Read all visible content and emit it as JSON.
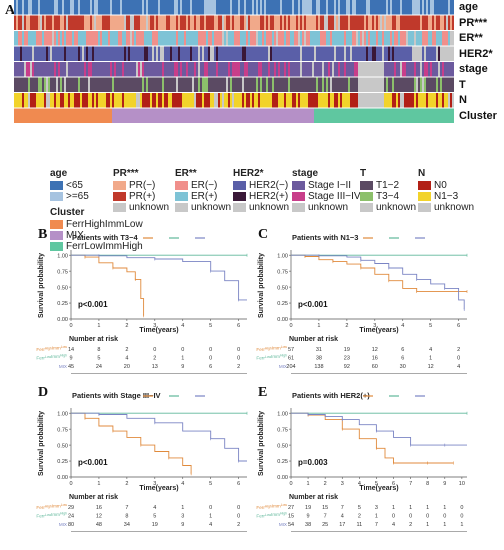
{
  "panel_a": {
    "letter": "A",
    "tracks": [
      {
        "key": "age",
        "label": "age"
      },
      {
        "key": "pr",
        "label": "PR***"
      },
      {
        "key": "er",
        "label": "ER**"
      },
      {
        "key": "her2",
        "label": "HER2*"
      },
      {
        "key": "stage",
        "label": "stage"
      },
      {
        "key": "t",
        "label": "T"
      },
      {
        "key": "n",
        "label": "N"
      },
      {
        "key": "cluster",
        "label": "Cluster"
      }
    ],
    "colors": {
      "age_lt65": "#3d72b4",
      "age_ge65": "#a6c3e0",
      "pr_neg": "#f1a98a",
      "pr_pos": "#c0392b",
      "er_neg": "#f08f8b",
      "er_pos": "#7ec3d6",
      "her2_neg": "#5a5fa8",
      "her2_pos": "#3a1838",
      "stage_1": "#6c5a9e",
      "stage_3": "#c83e8a",
      "t_1": "#5b4a63",
      "t_3": "#8cc06b",
      "n_0": "#b22016",
      "n_1": "#f2d32a",
      "unknown": "#c8c8c8",
      "cl_ferr_high": "#f08a50",
      "cl_mix": "#b590c7",
      "cl_ferr_low": "#5fc7a0"
    },
    "legends": [
      {
        "title": "age",
        "items": [
          {
            "c": "age_lt65",
            "t": "<65"
          },
          {
            "c": "age_ge65",
            "t": ">=65"
          }
        ]
      },
      {
        "title": "PR***",
        "items": [
          {
            "c": "pr_neg",
            "t": "PR(−)"
          },
          {
            "c": "pr_pos",
            "t": "PR(+)"
          },
          {
            "c": "unknown",
            "t": "unknown"
          }
        ]
      },
      {
        "title": "ER**",
        "items": [
          {
            "c": "er_neg",
            "t": "ER(−)"
          },
          {
            "c": "er_pos",
            "t": "ER(+)"
          },
          {
            "c": "unknown",
            "t": "unknown"
          }
        ]
      },
      {
        "title": "HER2*",
        "items": [
          {
            "c": "her2_neg",
            "t": "HER2(−)"
          },
          {
            "c": "her2_pos",
            "t": "HER2(+)"
          },
          {
            "c": "unknown",
            "t": "unknown"
          }
        ]
      },
      {
        "title": "stage",
        "items": [
          {
            "c": "stage_1",
            "t": "Stage I−II"
          },
          {
            "c": "stage_3",
            "t": "Stage III−IV"
          },
          {
            "c": "unknown",
            "t": "unknown"
          }
        ]
      },
      {
        "title": "T",
        "items": [
          {
            "c": "t_1",
            "t": "T1−2"
          },
          {
            "c": "t_3",
            "t": "T3−4"
          },
          {
            "c": "unknown",
            "t": "unknown"
          }
        ]
      },
      {
        "title": "N",
        "items": [
          {
            "c": "n_0",
            "t": "N0"
          },
          {
            "c": "n_1",
            "t": "N1−3"
          },
          {
            "c": "unknown",
            "t": "unknown"
          }
        ]
      }
    ],
    "cluster_legend": {
      "title": "Cluster",
      "items": [
        {
          "c": "cl_ferr_high",
          "t": "Ferr^High Imm^Low"
        },
        {
          "c": "cl_mix",
          "t": "MIX"
        },
        {
          "c": "cl_ferr_low",
          "t": "Ferr^Low Imm^High"
        }
      ]
    }
  },
  "chart_data": [
    {
      "letter": "B",
      "type": "line",
      "title": "Patients with T3−4",
      "xlabel": "Time(years)",
      "ylabel": "Survival probability",
      "xlim": [
        0,
        6.3
      ],
      "ylim": [
        0,
        1.05
      ],
      "xticks": [
        0,
        1,
        2,
        3,
        4,
        5,
        6
      ],
      "yticks": [
        0,
        0.25,
        0.5,
        0.75,
        1.0
      ],
      "ytick_labels": [
        "0.00",
        "0.25",
        "0.50",
        "0.75",
        "1.00"
      ],
      "pvalue": "p<0.001",
      "series": [
        {
          "key": "ferr_high",
          "color": "#e08a3c",
          "points": [
            [
              0,
              1
            ],
            [
              0.5,
              0.97
            ],
            [
              1,
              0.88
            ],
            [
              1.5,
              0.8
            ],
            [
              2,
              0.74
            ],
            [
              2.3,
              0.62
            ],
            [
              2.5,
              0.32
            ],
            [
              2.6,
              0.05
            ]
          ]
        },
        {
          "key": "ferr_low",
          "color": "#5fb79a",
          "points": [
            [
              0,
              1
            ],
            [
              6.3,
              1
            ]
          ]
        },
        {
          "key": "mix",
          "color": "#7a84c4",
          "points": [
            [
              0,
              1
            ],
            [
              1,
              0.99
            ],
            [
              2,
              0.96
            ],
            [
              3,
              0.94
            ],
            [
              4,
              0.9
            ],
            [
              5,
              0.75
            ],
            [
              5.5,
              0.6
            ],
            [
              6,
              0.3
            ],
            [
              6.3,
              0.3
            ]
          ]
        }
      ],
      "risk_title": "Number at risk",
      "risk_rows": [
        {
          "key": "ferr_high",
          "label": "Ferr^High Imm^Low",
          "color": "#e08a3c",
          "values": [
            14,
            8,
            2,
            0,
            0,
            0,
            0
          ]
        },
        {
          "key": "ferr_low",
          "label": "Ferr^Low Imm^High",
          "color": "#5fb79a",
          "values": [
            9,
            5,
            4,
            2,
            1,
            0,
            0
          ]
        },
        {
          "key": "mix",
          "label": "MIX",
          "color": "#7a84c4",
          "values": [
            45,
            24,
            20,
            13,
            9,
            6,
            2
          ]
        }
      ]
    },
    {
      "letter": "C",
      "type": "line",
      "title": "Patients with N1−3",
      "xlabel": "Time(years)",
      "ylabel": "Survival probability",
      "xlim": [
        0,
        6.3
      ],
      "ylim": [
        0,
        1.05
      ],
      "xticks": [
        0,
        1,
        2,
        3,
        4,
        5,
        6
      ],
      "yticks": [
        0,
        0.25,
        0.5,
        0.75,
        1.0
      ],
      "ytick_labels": [
        "0.00",
        "0.25",
        "0.50",
        "0.75",
        "1.00"
      ],
      "pvalue": "p<0.001",
      "series": [
        {
          "key": "ferr_high",
          "color": "#e08a3c",
          "points": [
            [
              0,
              1
            ],
            [
              0.5,
              0.98
            ],
            [
              1,
              0.93
            ],
            [
              1.5,
              0.9
            ],
            [
              2,
              0.86
            ],
            [
              2.5,
              0.8
            ],
            [
              3,
              0.7
            ],
            [
              3.5,
              0.6
            ],
            [
              4,
              0.48
            ],
            [
              4.5,
              0.43
            ],
            [
              5,
              0.43
            ],
            [
              6.3,
              0.43
            ]
          ]
        },
        {
          "key": "ferr_low",
          "color": "#5fb79a",
          "points": [
            [
              0,
              1
            ],
            [
              6.3,
              1
            ]
          ]
        },
        {
          "key": "mix",
          "color": "#7a84c4",
          "points": [
            [
              0,
              1
            ],
            [
              1,
              0.99
            ],
            [
              2,
              0.97
            ],
            [
              2.5,
              0.92
            ],
            [
              3,
              0.87
            ],
            [
              3.5,
              0.8
            ],
            [
              4,
              0.7
            ],
            [
              4.5,
              0.62
            ],
            [
              5,
              0.55
            ],
            [
              5.5,
              0.48
            ],
            [
              6,
              0.3
            ],
            [
              6.2,
              0.15
            ]
          ]
        }
      ],
      "risk_title": "Number at risk",
      "risk_rows": [
        {
          "key": "ferr_high",
          "label": "Ferr^High Imm^Low",
          "color": "#e08a3c",
          "values": [
            57,
            31,
            19,
            12,
            6,
            4,
            2
          ]
        },
        {
          "key": "ferr_low",
          "label": "Ferr^Low Imm^High",
          "color": "#5fb79a",
          "values": [
            61,
            38,
            23,
            16,
            6,
            1,
            0
          ]
        },
        {
          "key": "mix",
          "label": "MIX",
          "color": "#7a84c4",
          "values": [
            204,
            138,
            92,
            60,
            30,
            12,
            4
          ]
        }
      ]
    },
    {
      "letter": "D",
      "type": "line",
      "title": "Patients with Stage III−IV",
      "xlabel": "Time(years)",
      "ylabel": "Survival probability",
      "xlim": [
        0,
        6.3
      ],
      "ylim": [
        0,
        1.05
      ],
      "xticks": [
        0,
        1,
        2,
        3,
        4,
        5,
        6
      ],
      "yticks": [
        0,
        0.25,
        0.5,
        0.75,
        1.0
      ],
      "ytick_labels": [
        "0.00",
        "0.25",
        "0.50",
        "0.75",
        "1.00"
      ],
      "pvalue": "p<0.001",
      "series": [
        {
          "key": "ferr_high",
          "color": "#e08a3c",
          "points": [
            [
              0,
              1
            ],
            [
              0.5,
              0.92
            ],
            [
              1,
              0.8
            ],
            [
              1.5,
              0.72
            ],
            [
              2,
              0.62
            ],
            [
              2.5,
              0.5
            ],
            [
              3,
              0.4
            ],
            [
              3.5,
              0.3
            ],
            [
              4,
              0.18
            ],
            [
              4.3,
              0.05
            ]
          ]
        },
        {
          "key": "ferr_low",
          "color": "#5fb79a",
          "points": [
            [
              0,
              1
            ],
            [
              6.3,
              1
            ]
          ]
        },
        {
          "key": "mix",
          "color": "#7a84c4",
          "points": [
            [
              0,
              1
            ],
            [
              1,
              0.98
            ],
            [
              2,
              0.92
            ],
            [
              3,
              0.85
            ],
            [
              4,
              0.72
            ],
            [
              5,
              0.6
            ],
            [
              5.5,
              0.45
            ],
            [
              6,
              0.25
            ],
            [
              6.3,
              0.25
            ]
          ]
        }
      ],
      "risk_title": "Number at risk",
      "risk_rows": [
        {
          "key": "ferr_high",
          "label": "Ferr^High Imm^Low",
          "color": "#e08a3c",
          "values": [
            29,
            16,
            7,
            4,
            1,
            0,
            0
          ]
        },
        {
          "key": "ferr_low",
          "label": "Ferr^Low Imm^High",
          "color": "#5fb79a",
          "values": [
            24,
            12,
            8,
            5,
            3,
            1,
            0
          ]
        },
        {
          "key": "mix",
          "label": "MIX",
          "color": "#7a84c4",
          "values": [
            80,
            48,
            34,
            19,
            9,
            4,
            2
          ]
        }
      ]
    },
    {
      "letter": "E",
      "type": "line",
      "title": "Patients with HER2(+)",
      "xlabel": "Time(years)",
      "ylabel": "Survival probability",
      "xlim": [
        0,
        10.3
      ],
      "ylim": [
        0,
        1.05
      ],
      "xticks": [
        0,
        1,
        2,
        3,
        4,
        5,
        6,
        7,
        8,
        9,
        10
      ],
      "yticks": [
        0,
        0.25,
        0.5,
        0.75,
        1.0
      ],
      "ytick_labels": [
        "0.00",
        "0.25",
        "0.50",
        "0.75",
        "1.00"
      ],
      "pvalue": "p=0.003",
      "series": [
        {
          "key": "ferr_high",
          "color": "#e08a3c",
          "points": [
            [
              0,
              1
            ],
            [
              1,
              0.97
            ],
            [
              2,
              0.9
            ],
            [
              3,
              0.75
            ],
            [
              4,
              0.6
            ],
            [
              5,
              0.45
            ],
            [
              5.5,
              0.3
            ],
            [
              6,
              0.22
            ],
            [
              7,
              0.22
            ],
            [
              8,
              0.22
            ],
            [
              9,
              0.22
            ],
            [
              9.5,
              0.22
            ]
          ]
        },
        {
          "key": "ferr_low",
          "color": "#5fb79a",
          "points": [
            [
              0,
              1
            ],
            [
              10.3,
              1
            ]
          ]
        },
        {
          "key": "mix",
          "color": "#7a84c4",
          "points": [
            [
              0,
              1
            ],
            [
              1,
              0.98
            ],
            [
              2,
              0.95
            ],
            [
              3,
              0.9
            ],
            [
              4,
              0.82
            ],
            [
              5,
              0.72
            ],
            [
              6,
              0.62
            ],
            [
              7,
              0.5
            ],
            [
              8,
              0.5
            ],
            [
              9,
              0.5
            ],
            [
              10.3,
              0.5
            ]
          ]
        }
      ],
      "risk_title": "Number at risk",
      "risk_rows": [
        {
          "key": "ferr_high",
          "label": "Ferr^High Imm^Low",
          "color": "#e08a3c",
          "values": [
            27,
            19,
            15,
            7,
            5,
            3,
            1,
            1,
            1,
            1,
            0
          ]
        },
        {
          "key": "ferr_low",
          "label": "Ferr^Low Imm^High",
          "color": "#5fb79a",
          "values": [
            15,
            9,
            7,
            4,
            2,
            1,
            0,
            0,
            0,
            0,
            0
          ]
        },
        {
          "key": "mix",
          "label": "MIX",
          "color": "#7a84c4",
          "values": [
            54,
            38,
            25,
            17,
            11,
            7,
            4,
            2,
            1,
            1,
            1
          ]
        }
      ]
    }
  ]
}
